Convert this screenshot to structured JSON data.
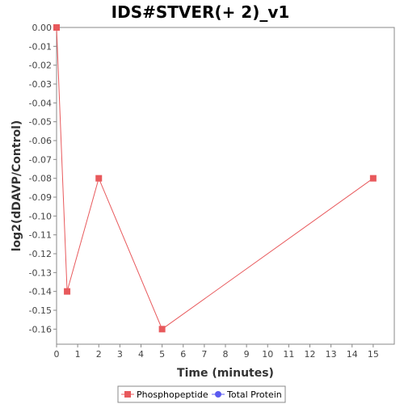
{
  "chart_data": {
    "type": "line",
    "title": "IDS#STVER(+ 2)_v1",
    "xlabel": "Time (minutes)",
    "ylabel": "log2(dDAVP/Control)",
    "xlim": [
      0,
      16
    ],
    "ylim": [
      -0.168,
      0.0
    ],
    "x_ticks": [
      0,
      1,
      2,
      3,
      4,
      5,
      6,
      7,
      8,
      9,
      10,
      11,
      12,
      13,
      14,
      15
    ],
    "y_ticks": [
      0.0,
      -0.01,
      -0.02,
      -0.03,
      -0.04,
      -0.05,
      -0.06,
      -0.07,
      -0.08,
      -0.09,
      -0.1,
      -0.11,
      -0.12,
      -0.13,
      -0.14,
      -0.15,
      -0.16
    ],
    "grid": false,
    "legend_position": "bottom-center",
    "series": [
      {
        "name": "Phosphopeptide",
        "color": "#e8595c",
        "marker": "square",
        "points": [
          {
            "x": 0,
            "y": 0.0
          },
          {
            "x": 0.5,
            "y": -0.14
          },
          {
            "x": 2,
            "y": -0.08
          },
          {
            "x": 5,
            "y": -0.16
          },
          {
            "x": 15,
            "y": -0.08
          }
        ]
      },
      {
        "name": "Total Protein",
        "color": "#5a5af0",
        "marker": "circle",
        "points": []
      }
    ]
  }
}
